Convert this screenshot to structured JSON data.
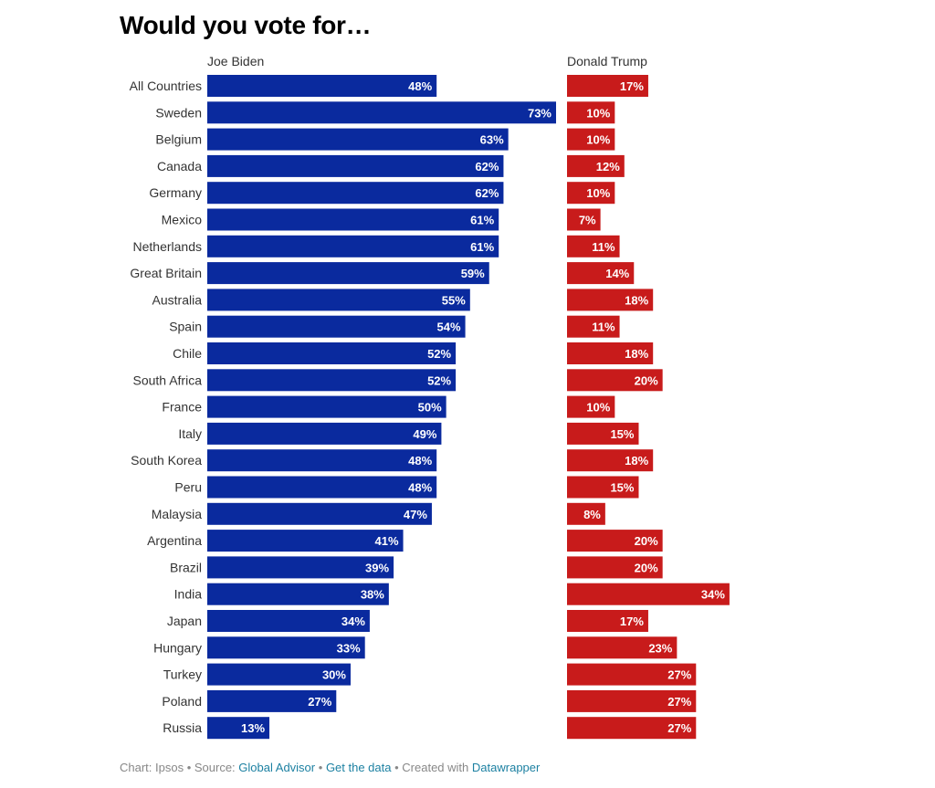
{
  "title": "Would you vote for…",
  "chart_data": {
    "type": "bar",
    "orientation": "horizontal",
    "title": "Would you vote for…",
    "categories": [
      "All Countries",
      "Sweden",
      "Belgium",
      "Canada",
      "Germany",
      "Mexico",
      "Netherlands",
      "Great Britain",
      "Australia",
      "Spain",
      "Chile",
      "South Africa",
      "France",
      "Italy",
      "South Korea",
      "Peru",
      "Malaysia",
      "Argentina",
      "Brazil",
      "India",
      "Japan",
      "Hungary",
      "Turkey",
      "Poland",
      "Russia"
    ],
    "series": [
      {
        "name": "Joe Biden",
        "color": "#0a2a9e",
        "values": [
          48,
          73,
          63,
          62,
          62,
          61,
          61,
          59,
          55,
          54,
          52,
          52,
          50,
          49,
          48,
          48,
          47,
          41,
          39,
          38,
          34,
          33,
          30,
          27,
          13
        ]
      },
      {
        "name": "Donald Trump",
        "color": "#c81b1b",
        "values": [
          17,
          10,
          10,
          12,
          10,
          7,
          11,
          14,
          18,
          11,
          18,
          20,
          10,
          15,
          18,
          15,
          8,
          20,
          20,
          34,
          17,
          23,
          27,
          27,
          27
        ]
      }
    ],
    "value_suffix": "%",
    "xlim": [
      0,
      73
    ]
  },
  "footer": {
    "prefix": "Chart: Ipsos • Source:",
    "source_link": "Global Advisor",
    "sep1": "•",
    "data_link": "Get the data",
    "sep2": "• Created with",
    "tool_link": "Datawrapper"
  }
}
